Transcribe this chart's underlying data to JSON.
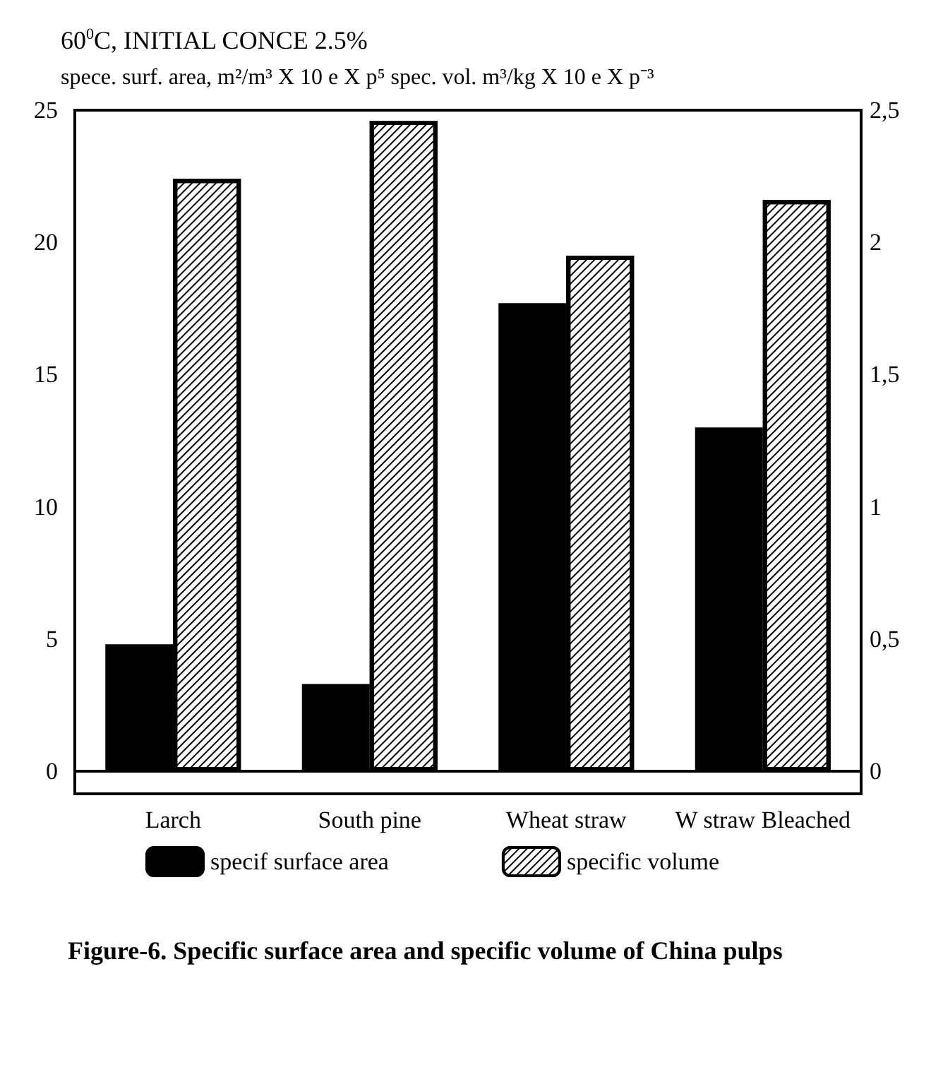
{
  "chart_data": {
    "type": "bar",
    "title": "60$^{0}$C, INITIAL CONCE 2.5%",
    "subtitle": "spece. surf. area, m²/m³ X 10 e X p⁵ spec. vol. m³/kg X 10 e X p⁻³",
    "categories": [
      "Larch",
      "South pine",
      "Wheat straw",
      "W straw Bleached"
    ],
    "series": [
      {
        "name": "specif surface area",
        "color": "#000000",
        "values": [
          4.8,
          3.3,
          17.7,
          13
        ]
      },
      {
        "name": "specific volume",
        "color": "#ffffff",
        "axis": "y2",
        "values": [
          2.24,
          2.46,
          1.95,
          2.16
        ]
      }
    ],
    "ylim": [
      0,
      25
    ],
    "yticks": [
      0,
      5,
      10,
      15,
      20,
      25
    ],
    "y2lim": [
      0,
      2.5
    ],
    "y2ticks": [
      0,
      {
        "value": 0.5,
        "label": "0,5"
      },
      1,
      {
        "value": 1.5,
        "label": "1,5"
      },
      2,
      {
        "value": 2.5,
        "label": "2,5"
      }
    ],
    "grid": false,
    "legend": "bottom",
    "annotations": [
      "Figure-6. Specific surface area and specific volume of China pulps"
    ]
  }
}
